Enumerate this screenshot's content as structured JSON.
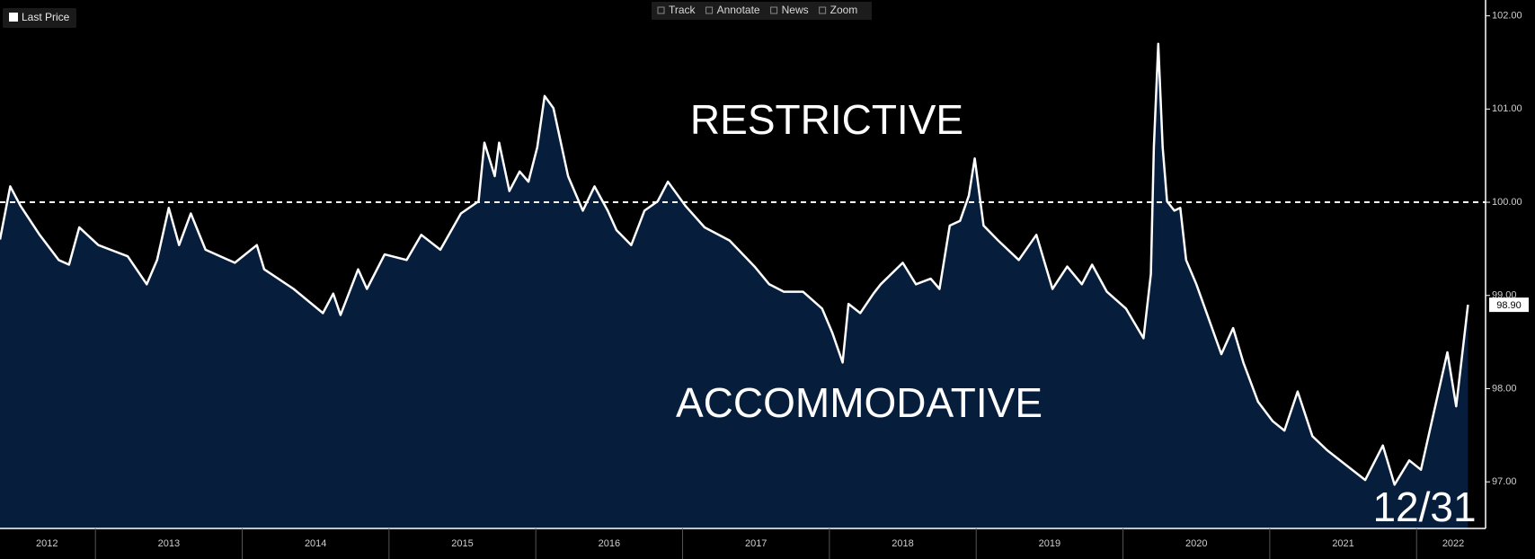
{
  "toolbar": [
    "Track",
    "Annotate",
    "News",
    "Zoom"
  ],
  "chart_data": {
    "type": "area",
    "series": [
      {
        "name": "Last Price",
        "color": "#ffffff",
        "fill": "#061d3b",
        "values": [
          99.6,
          100.17,
          99.96,
          99.65,
          99.38,
          99.33,
          99.73,
          99.54,
          99.42,
          99.12,
          99.38,
          99.94,
          99.54,
          99.88,
          99.49,
          99.35,
          99.54,
          99.28,
          99.07,
          98.81,
          99.02,
          98.79,
          99.28,
          99.07,
          99.44,
          99.38,
          99.65,
          99.49,
          99.88,
          100.01,
          100.64,
          100.28,
          100.64,
          100.12,
          100.33,
          100.22,
          100.59,
          101.14,
          101.01,
          100.28,
          99.91,
          100.17,
          99.91,
          99.7,
          99.54,
          99.91,
          100.01,
          100.22,
          99.96,
          99.73,
          99.59,
          99.31,
          99.12,
          99.04,
          99.04,
          98.86,
          98.6,
          98.28,
          98.91,
          98.81,
          99.02,
          99.12,
          99.35,
          99.12,
          99.18,
          99.07,
          99.75,
          99.8,
          100.07,
          100.47,
          99.75,
          99.59,
          99.38,
          99.65,
          99.07,
          99.31,
          99.12,
          99.33,
          99.04,
          98.86,
          98.54,
          99.23,
          100.59,
          101.7,
          100.59,
          100.01,
          99.91,
          99.94,
          99.38,
          99.12,
          98.81,
          98.37,
          98.65,
          98.28,
          97.86,
          97.65,
          97.55,
          97.97,
          97.49,
          97.34,
          97.18,
          97.02,
          97.39,
          96.97,
          97.23,
          97.13,
          97.76,
          98.39,
          97.81,
          98.49,
          98.9
        ]
      }
    ],
    "x": [
      2012.35,
      2012.42,
      2012.49,
      2012.62,
      2012.75,
      2012.82,
      2012.89,
      2013.02,
      2013.22,
      2013.35,
      2013.42,
      2013.5,
      2013.57,
      2013.65,
      2013.75,
      2013.95,
      2014.1,
      2014.15,
      2014.35,
      2014.55,
      2014.62,
      2014.67,
      2014.79,
      2014.85,
      2014.97,
      2015.12,
      2015.22,
      2015.35,
      2015.49,
      2015.61,
      2015.65,
      2015.72,
      2015.75,
      2015.82,
      2015.89,
      2015.95,
      2016.01,
      2016.06,
      2016.12,
      2016.22,
      2016.32,
      2016.4,
      2016.49,
      2016.55,
      2016.65,
      2016.74,
      2016.83,
      2016.9,
      2017.02,
      2017.15,
      2017.32,
      2017.49,
      2017.59,
      2017.69,
      2017.82,
      2017.95,
      2018.02,
      2018.09,
      2018.13,
      2018.21,
      2018.3,
      2018.35,
      2018.5,
      2018.59,
      2018.69,
      2018.75,
      2018.82,
      2018.89,
      2018.95,
      2018.99,
      2019.05,
      2019.15,
      2019.29,
      2019.41,
      2019.52,
      2019.62,
      2019.72,
      2019.79,
      2019.89,
      2020.02,
      2020.14,
      2020.19,
      2020.21,
      2020.24,
      2020.27,
      2020.3,
      2020.35,
      2020.39,
      2020.43,
      2020.5,
      2020.57,
      2020.67,
      2020.75,
      2020.82,
      2020.92,
      2021.02,
      2021.1,
      2021.19,
      2021.29,
      2021.39,
      2021.52,
      2021.65,
      2021.77,
      2021.85,
      2021.95,
      2022.03,
      2022.12,
      2022.21,
      2022.27,
      2022.32,
      2022.35
    ],
    "last_label": "98.90",
    "xlim": [
      2012.35,
      2022.47
    ],
    "xticks": [
      {
        "value": 2012.67,
        "label": "2012"
      },
      {
        "value": 2013.5,
        "label": "2013"
      },
      {
        "value": 2014.5,
        "label": "2014"
      },
      {
        "value": 2015.5,
        "label": "2015"
      },
      {
        "value": 2016.5,
        "label": "2016"
      },
      {
        "value": 2017.5,
        "label": "2017"
      },
      {
        "value": 2018.5,
        "label": "2018"
      },
      {
        "value": 2019.5,
        "label": "2019"
      },
      {
        "value": 2020.5,
        "label": "2020"
      },
      {
        "value": 2021.5,
        "label": "2021"
      },
      {
        "value": 2022.25,
        "label": "2022"
      }
    ],
    "ylim": [
      96.5,
      102.17
    ],
    "yticks": [
      {
        "value": 97,
        "label": "97.00"
      },
      {
        "value": 98,
        "label": "98.00"
      },
      {
        "value": 99,
        "label": "99.00"
      },
      {
        "value": 100,
        "label": "100.00"
      },
      {
        "value": 101,
        "label": "101.00"
      },
      {
        "value": 102,
        "label": "102.00"
      }
    ],
    "reference_line": 100,
    "annotations": [
      "RESTRICTIVE",
      "ACCOMMODATIVE",
      "12/31"
    ]
  }
}
